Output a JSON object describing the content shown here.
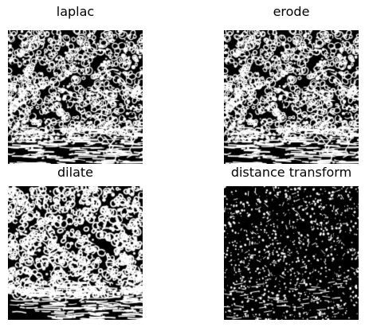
{
  "figure": {
    "background": "#ffffff",
    "panels": [
      {
        "id": "laplac",
        "title": "laplac",
        "style": "dense-light",
        "seed": 11
      },
      {
        "id": "erode",
        "title": "erode",
        "style": "dense-light",
        "seed": 11
      },
      {
        "id": "dilate",
        "title": "dilate",
        "style": "dense-light-smooth",
        "seed": 23
      },
      {
        "id": "distance-transform",
        "title": "distance transform",
        "style": "dark-speckle",
        "seed": 37
      }
    ],
    "colors": {
      "foreground": "#ffffff",
      "background": "#000000",
      "title_text": "#000000"
    }
  }
}
